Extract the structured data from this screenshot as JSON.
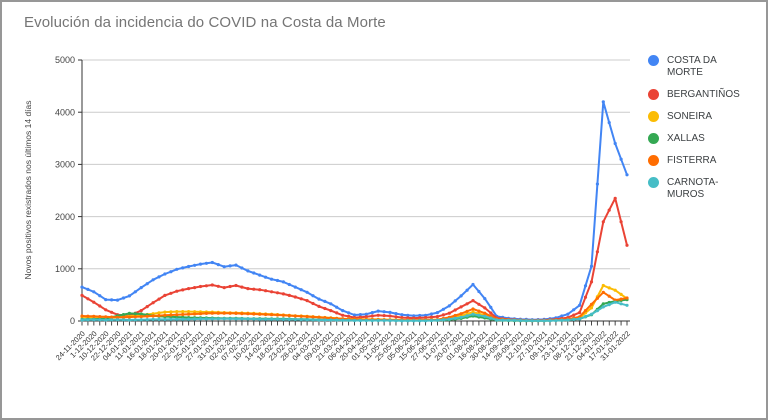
{
  "chart_data": {
    "type": "line",
    "title": "Evolución da incidencia do COVID na Costa da Morte",
    "xlabel": "",
    "ylabel": "Novos positivos rexistrados nos últimos 14 días",
    "ylim": [
      0,
      5000
    ],
    "yticks": [
      0,
      1000,
      2000,
      3000,
      4000,
      5000
    ],
    "grid": true,
    "legend_position": "right",
    "point_markers": true,
    "categories": [
      "24-11-2020",
      "1-12-2020",
      "10-12-2020",
      "22-12-2020",
      "04-01-2021",
      "11-01-2021",
      "16-01-2021",
      "18-01-2021",
      "20-01-2021",
      "22-01-2021",
      "25-01-2021",
      "27-01-2021",
      "31-01-2021",
      "02-02-2021",
      "07-02-2021",
      "10-02-2021",
      "14-02-2021",
      "18-02-2021",
      "23-02-2021",
      "28-02-2021",
      "04-03-2021",
      "09-03-2021",
      "21-03-2021",
      "06-04-2021",
      "20-04-2021",
      "01-05-2021",
      "11-05-2021",
      "25-05-2021",
      "05-06-2021",
      "15-06-2021",
      "27-06-2021",
      "11-07-2021",
      "20-07-2021",
      "01-08-2021",
      "16-08-2021",
      "30-08-2021",
      "14-09-2021",
      "28-09-2021",
      "12-10-2021",
      "27-10-2021",
      "09-11-2021",
      "23-11-2021",
      "08-12-2021",
      "21-12-2021",
      "04-01-2022",
      "17-01-2022",
      "31-01-2022"
    ],
    "series": [
      {
        "name": "COSTA DA MORTE",
        "color": "#4285f4",
        "values": [
          650,
          560,
          410,
          400,
          480,
          640,
          790,
          900,
          990,
          1045,
          1090,
          1120,
          1040,
          1070,
          960,
          880,
          800,
          750,
          650,
          550,
          420,
          330,
          200,
          115,
          130,
          190,
          165,
          120,
          100,
          110,
          160,
          290,
          480,
          700,
          430,
          90,
          50,
          35,
          25,
          30,
          60,
          130,
          300,
          1050,
          4200,
          3400,
          2800
        ]
      },
      {
        "name": "BERGANTIÑOS",
        "color": "#ea4335",
        "values": [
          490,
          360,
          215,
          120,
          100,
          200,
          350,
          490,
          570,
          620,
          660,
          690,
          640,
          680,
          620,
          600,
          560,
          520,
          460,
          390,
          280,
          200,
          110,
          65,
          80,
          110,
          95,
          65,
          55,
          65,
          85,
          150,
          270,
          390,
          250,
          55,
          30,
          20,
          12,
          18,
          30,
          65,
          160,
          750,
          1900,
          2350,
          1450
        ]
      },
      {
        "name": "SONEIRA",
        "color": "#fbbc04",
        "values": [
          80,
          70,
          60,
          70,
          90,
          110,
          140,
          170,
          180,
          180,
          175,
          170,
          160,
          155,
          150,
          140,
          130,
          115,
          100,
          90,
          75,
          60,
          45,
          35,
          30,
          30,
          25,
          20,
          15,
          20,
          25,
          50,
          100,
          170,
          110,
          30,
          15,
          10,
          6,
          8,
          15,
          30,
          60,
          250,
          680,
          590,
          430
        ]
      },
      {
        "name": "XALLAS",
        "color": "#34a853",
        "values": [
          30,
          35,
          45,
          100,
          145,
          135,
          100,
          85,
          75,
          65,
          60,
          55,
          50,
          50,
          45,
          45,
          40,
          40,
          35,
          30,
          25,
          25,
          20,
          15,
          15,
          15,
          10,
          10,
          10,
          10,
          15,
          25,
          50,
          95,
          60,
          15,
          10,
          6,
          5,
          6,
          10,
          20,
          40,
          120,
          330,
          380,
          410
        ]
      },
      {
        "name": "FISTERRA",
        "color": "#ff6d01",
        "values": [
          95,
          90,
          80,
          70,
          75,
          85,
          95,
          110,
          120,
          130,
          140,
          150,
          150,
          145,
          140,
          130,
          120,
          110,
          95,
          85,
          70,
          55,
          40,
          30,
          25,
          25,
          20,
          15,
          15,
          15,
          25,
          70,
          140,
          230,
          150,
          35,
          25,
          15,
          8,
          10,
          15,
          30,
          80,
          320,
          550,
          400,
          440
        ]
      },
      {
        "name": "CARNOTA-MUROS",
        "color": "#46bdc6",
        "values": [
          20,
          25,
          20,
          25,
          20,
          25,
          30,
          30,
          35,
          35,
          40,
          40,
          45,
          40,
          40,
          35,
          35,
          30,
          30,
          25,
          20,
          20,
          15,
          10,
          10,
          10,
          10,
          5,
          5,
          5,
          15,
          35,
          70,
          130,
          90,
          20,
          15,
          10,
          5,
          5,
          10,
          20,
          40,
          130,
          270,
          360,
          300
        ]
      }
    ]
  }
}
